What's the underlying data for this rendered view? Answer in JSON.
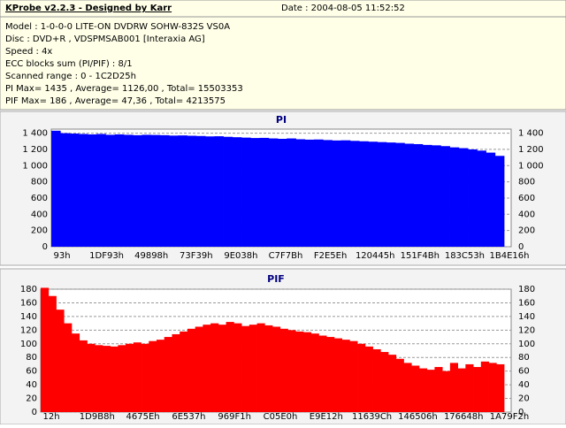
{
  "header": {
    "title": "KProbe v2.2.3 - Designed by Karr",
    "date": "Date : 2004-08-05 11:52:52",
    "lines": [
      "Model : 1-0-0-0 LITE-ON DVDRW SOHW-832S  VS0A",
      "Disc : DVD+R , VDSPMSAB001 [Interaxia AG]",
      "Speed : 4x",
      "ECC blocks sum (PI/PIF) : 8/1",
      "Scanned range : 0 - 1C2D25h",
      "PI Max= 1435 , Average= 1126,00 , Total= 15503353",
      "PIF Max= 186 , Average= 47,36 , Total= 4213575"
    ]
  },
  "chart_data": [
    {
      "type": "bar",
      "title": "PI",
      "color": "#0000ff",
      "grid": true,
      "x_tick_labels": [
        "93h",
        "1DF93h",
        "49898h",
        "73F39h",
        "9E038h",
        "C7F7Bh",
        "F2E5Eh",
        "120445h",
        "151F4Bh",
        "183C53h",
        "1B4E16h"
      ],
      "values": [
        1430,
        1400,
        1395,
        1390,
        1385,
        1390,
        1380,
        1385,
        1380,
        1375,
        1380,
        1378,
        1375,
        1370,
        1372,
        1368,
        1365,
        1360,
        1362,
        1355,
        1350,
        1345,
        1340,
        1342,
        1335,
        1330,
        1335,
        1325,
        1320,
        1322,
        1315,
        1310,
        1312,
        1305,
        1300,
        1295,
        1290,
        1285,
        1280,
        1270,
        1265,
        1255,
        1250,
        1240,
        1225,
        1215,
        1200,
        1185,
        1160,
        1120
      ],
      "ylim": [
        0,
        1450
      ],
      "yticks": [
        0,
        200,
        400,
        600,
        800,
        {
          "value": 1000,
          "label": "1 000"
        },
        {
          "value": 1200,
          "label": "1 200"
        },
        {
          "value": 1400,
          "label": "1 400"
        }
      ]
    },
    {
      "type": "bar",
      "title": "PIF",
      "color": "#ff0000",
      "grid": true,
      "x_tick_labels": [
        "12h",
        "1D9B8h",
        "4675Eh",
        "6E537h",
        "969F1h",
        "C05E0h",
        "E9E12h",
        "11639Ch",
        "146506h",
        "176648h",
        "1A79F2h"
      ],
      "values": [
        182,
        170,
        150,
        130,
        115,
        105,
        100,
        98,
        97,
        96,
        98,
        100,
        102,
        100,
        104,
        106,
        110,
        114,
        118,
        122,
        125,
        128,
        130,
        128,
        132,
        130,
        126,
        128,
        130,
        127,
        125,
        122,
        120,
        118,
        117,
        115,
        112,
        110,
        108,
        106,
        104,
        100,
        96,
        92,
        88,
        84,
        78,
        72,
        68,
        64,
        62,
        66,
        60,
        72,
        64,
        70,
        66,
        74,
        72,
        70
      ],
      "ylim": [
        0,
        180
      ],
      "yticks": [
        0,
        20,
        40,
        60,
        80,
        100,
        120,
        140,
        160,
        180
      ]
    }
  ]
}
